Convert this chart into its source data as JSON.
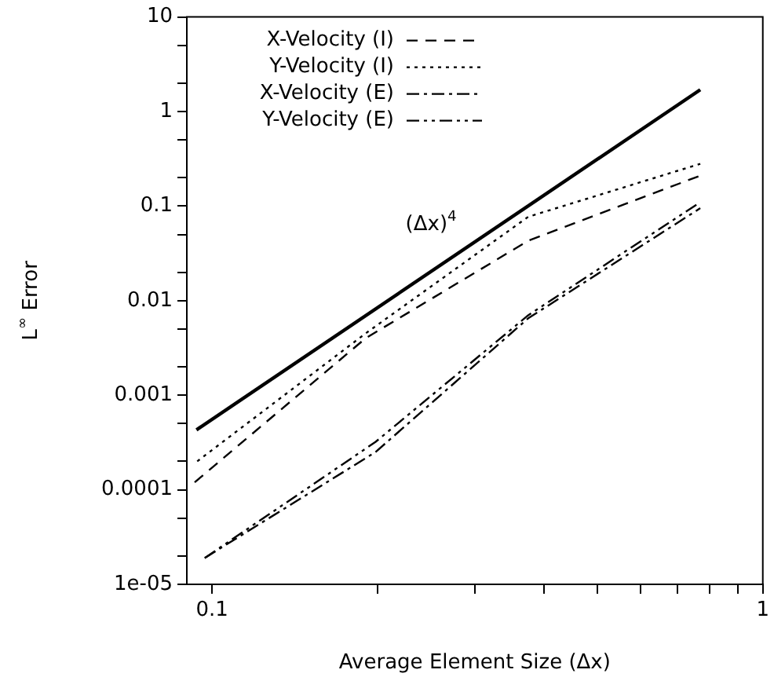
{
  "chart_data": {
    "type": "line",
    "xlabel": "Average Element Size (Δx)",
    "ylabel": "L$^{∞}$ Error",
    "log": "xy",
    "grid": false,
    "legend": "top left",
    "xlim": [
      0.09,
      1
    ],
    "ylim": [
      1e-05,
      10
    ],
    "xticks": [
      0.1,
      {
        "value": 0.2,
        "label": null
      },
      {
        "value": 0.3,
        "label": null
      },
      {
        "value": 0.4,
        "label": null
      },
      {
        "value": 0.5,
        "label": null
      },
      {
        "value": 0.6,
        "label": null
      },
      {
        "value": 0.7,
        "label": null
      },
      {
        "value": 0.8,
        "label": null
      },
      {
        "value": 0.9,
        "label": null
      },
      1
    ],
    "yticks": [
      {
        "value": 1e-05,
        "label": "1e-05"
      },
      {
        "value": 2e-05,
        "label": null
      },
      {
        "value": 5e-05,
        "label": null
      },
      0.0001,
      {
        "value": 0.0002,
        "label": null
      },
      {
        "value": 0.0005,
        "label": null
      },
      0.001,
      {
        "value": 0.002,
        "label": null
      },
      {
        "value": 0.005,
        "label": null
      },
      0.01,
      {
        "value": 0.02,
        "label": null
      },
      {
        "value": 0.05,
        "label": null
      },
      0.1,
      {
        "value": 0.2,
        "label": null
      },
      {
        "value": 0.5,
        "label": null
      },
      1,
      {
        "value": 2,
        "label": null
      },
      {
        "value": 5,
        "label": null
      },
      10
    ],
    "annotations": [
      "(Δx)$^{4}$"
    ],
    "series": [
      {
        "name": "X-Velocity (I)",
        "color": "#000000",
        "line_style": "dashed",
        "x": [
          0.093,
          0.19,
          0.375,
          0.77
        ],
        "values": [
          0.00012,
          0.004,
          0.043,
          0.21
        ]
      },
      {
        "name": "Y-Velocity (I)",
        "color": "#000000",
        "line_style": "dotted",
        "x": [
          0.094,
          0.19,
          0.375,
          0.77
        ],
        "values": [
          0.0002,
          0.0045,
          0.077,
          0.28
        ]
      },
      {
        "name": "X-Velocity (E)",
        "color": "#000000",
        "line_style": "dashdot",
        "x": [
          0.097,
          0.198,
          0.375,
          0.77
        ],
        "values": [
          1.9e-05,
          0.00025,
          0.0065,
          0.095
        ]
      },
      {
        "name": "Y-Velocity (E)",
        "color": "#000000",
        "line_style": "dashdotdot",
        "x": [
          0.097,
          0.198,
          0.375,
          0.77
        ],
        "values": [
          1.9e-05,
          0.00032,
          0.007,
          0.11
        ]
      },
      {
        "color": "#000000",
        "line_style": "solid",
        "x": [
          0.0937,
          0.77
        ],
        "values": [
          0.00043,
          1.7
        ]
      }
    ]
  }
}
